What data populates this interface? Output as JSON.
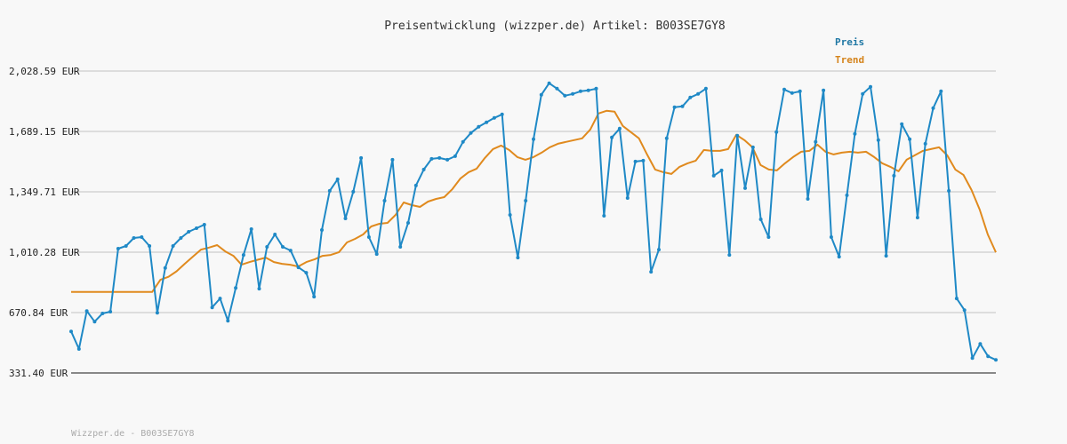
{
  "chart_data": {
    "type": "line",
    "title": "Preisentwicklung (wizzper.de) Artikel: B003SE7GY8",
    "footer": "Wizzper.de - B003SE7GY8",
    "colors": {
      "price": "#1f89c6",
      "trend": "#e08a1e",
      "legend_price": "#1f77a4",
      "legend_trend": "#d5841c"
    },
    "y_ticks": [
      "2,028.59 EUR",
      "1,689.15 EUR",
      "1,349.71 EUR",
      "1,010.28 EUR",
      "670.84 EUR",
      "331.40 EUR"
    ],
    "ylim": [
      331.4,
      2028.59
    ],
    "grid": true,
    "legend_position": "top-right",
    "series": [
      {
        "name": "Preis",
        "values": [
          565,
          466,
          680,
          620,
          666,
          676,
          1030,
          1045,
          1090,
          1095,
          1045,
          670,
          922,
          1045,
          1090,
          1125,
          1145,
          1165,
          700,
          750,
          625,
          809,
          995,
          1140,
          805,
          1040,
          1110,
          1040,
          1020,
          925,
          895,
          760,
          1135,
          1355,
          1420,
          1200,
          1350,
          1540,
          1095,
          1000,
          1300,
          1530,
          1040,
          1175,
          1385,
          1475,
          1535,
          1540,
          1530,
          1550,
          1630,
          1680,
          1715,
          1740,
          1765,
          1785,
          1220,
          980,
          1300,
          1645,
          1895,
          1960,
          1930,
          1890,
          1900,
          1915,
          1920,
          1930,
          1215,
          1655,
          1705,
          1315,
          1520,
          1525,
          900,
          1025,
          1650,
          1825,
          1830,
          1880,
          1900,
          1930,
          1440,
          1470,
          995,
          1665,
          1370,
          1600,
          1195,
          1095,
          1685,
          1925,
          1905,
          1915,
          1310,
          1630,
          1920,
          1095,
          985,
          1330,
          1675,
          1900,
          1940,
          1640,
          990,
          1440,
          1730,
          1645,
          1205,
          1620,
          1820,
          1915,
          1355,
          750,
          685,
          415,
          495,
          425,
          405
        ]
      },
      {
        "name": "Trend",
        "values": [
          787,
          787,
          787,
          787,
          787,
          787,
          787,
          787,
          787,
          787,
          787,
          855,
          872,
          903,
          945,
          985,
          1025,
          1036,
          1050,
          1015,
          990,
          940,
          955,
          968,
          980,
          955,
          945,
          940,
          930,
          955,
          970,
          990,
          995,
          1010,
          1065,
          1085,
          1110,
          1155,
          1170,
          1175,
          1220,
          1290,
          1275,
          1265,
          1295,
          1310,
          1320,
          1365,
          1425,
          1460,
          1480,
          1540,
          1590,
          1610,
          1585,
          1545,
          1530,
          1545,
          1570,
          1600,
          1620,
          1630,
          1640,
          1650,
          1700,
          1790,
          1805,
          1800,
          1720,
          1685,
          1650,
          1560,
          1475,
          1460,
          1450,
          1490,
          1510,
          1525,
          1585,
          1580,
          1580,
          1590,
          1670,
          1640,
          1600,
          1500,
          1475,
          1470,
          1510,
          1545,
          1575,
          1580,
          1615,
          1575,
          1560,
          1570,
          1575,
          1570,
          1575,
          1545,
          1510,
          1490,
          1465,
          1530,
          1555,
          1580,
          1590,
          1600,
          1555,
          1475,
          1445,
          1360,
          1250,
          1110,
          1010
        ]
      }
    ]
  }
}
